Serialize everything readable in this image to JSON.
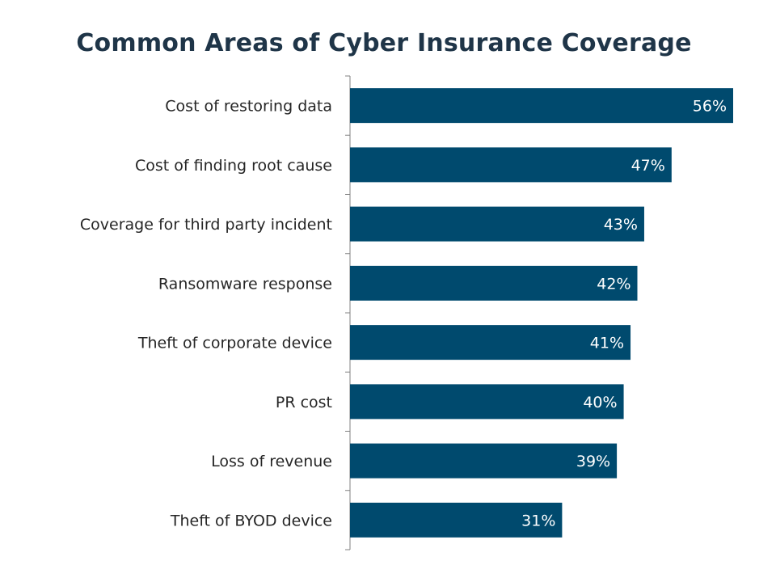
{
  "chart_data": {
    "type": "bar",
    "orientation": "horizontal",
    "title": "Common Areas of Cyber Insurance Coverage",
    "categories": [
      "Cost of restoring data",
      "Cost of finding root cause",
      "Coverage for third party incident",
      "Ransomware response",
      "Theft of corporate device",
      "PR cost",
      "Loss of revenue",
      "Theft of BYOD device"
    ],
    "values": [
      56,
      47,
      43,
      42,
      41,
      40,
      39,
      31
    ],
    "value_labels": [
      "56%",
      "47%",
      "43%",
      "42%",
      "41%",
      "40%",
      "39%",
      "31%"
    ],
    "unit": "%",
    "xlim": [
      0,
      56
    ],
    "grid": false,
    "legend": "none",
    "bar_color": "#004a6e",
    "axis_color": "#808080"
  }
}
